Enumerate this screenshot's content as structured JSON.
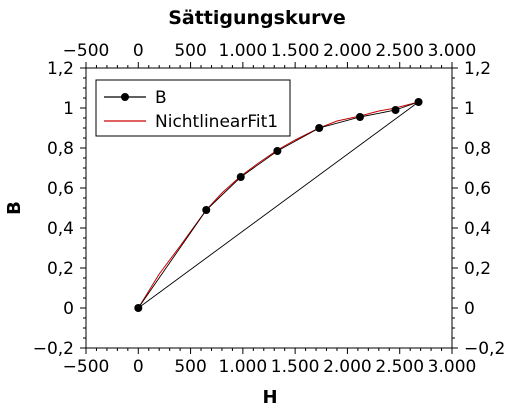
{
  "chart_data": {
    "type": "scatter",
    "title": "Sättigungskurve",
    "xlabel": "H",
    "ylabel": "B",
    "xlim": [
      -500,
      3000
    ],
    "ylim": [
      -0.2,
      1.2
    ],
    "x_ticks": [
      -500,
      0,
      500,
      1000,
      1500,
      2000,
      2500,
      3000
    ],
    "x_tick_labels": [
      "−500",
      "0",
      "500",
      "1.000",
      "1.500",
      "2.000",
      "2.500",
      "3.000"
    ],
    "y_ticks": [
      -0.2,
      0,
      0.2,
      0.4,
      0.6,
      0.8,
      1,
      1.2
    ],
    "y_tick_labels": [
      "−0,2",
      "0",
      "0,2",
      "0,4",
      "0,6",
      "0,8",
      "1",
      "1,2"
    ],
    "grid": false,
    "legend_position": "top-left",
    "series": [
      {
        "name": "B",
        "style": "line-markers",
        "color": "#000000",
        "x": [
          0,
          650,
          980,
          1330,
          1730,
          2120,
          2460,
          2680
        ],
        "y": [
          0,
          0.49,
          0.655,
          0.785,
          0.9,
          0.955,
          0.99,
          1.03
        ]
      },
      {
        "name": "NichtlinearFit1",
        "style": "line",
        "color": "#cc0000",
        "x": [
          0,
          200,
          400,
          650,
          800,
          980,
          1150,
          1330,
          1500,
          1730,
          1900,
          2120,
          2300,
          2460,
          2680
        ],
        "y": [
          0,
          0.17,
          0.31,
          0.49,
          0.575,
          0.66,
          0.725,
          0.79,
          0.84,
          0.9,
          0.935,
          0.96,
          0.985,
          1.0,
          1.03
        ]
      }
    ]
  }
}
